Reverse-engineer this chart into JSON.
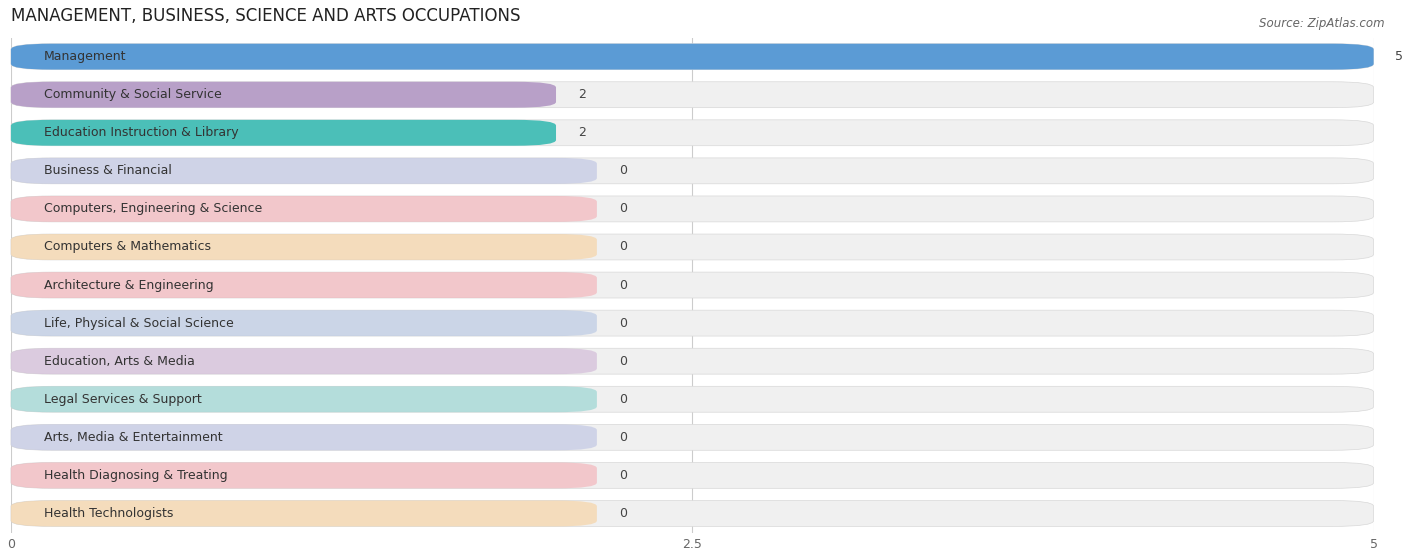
{
  "title": "MANAGEMENT, BUSINESS, SCIENCE AND ARTS OCCUPATIONS",
  "source": "Source: ZipAtlas.com",
  "categories": [
    "Management",
    "Community & Social Service",
    "Education Instruction & Library",
    "Business & Financial",
    "Computers, Engineering & Science",
    "Computers & Mathematics",
    "Architecture & Engineering",
    "Life, Physical & Social Science",
    "Education, Arts & Media",
    "Legal Services & Support",
    "Arts, Media & Entertainment",
    "Health Diagnosing & Treating",
    "Health Technologists"
  ],
  "values": [
    5,
    2,
    2,
    0,
    0,
    0,
    0,
    0,
    0,
    0,
    0,
    0,
    0
  ],
  "bar_colors": [
    "#5b9bd5",
    "#b8a0c8",
    "#4bbfb8",
    "#b0b8e0",
    "#f4a0a8",
    "#f8c98a",
    "#f4a0a8",
    "#a8bce0",
    "#c8a8d0",
    "#7accc8",
    "#b0b8e0",
    "#f4a0a8",
    "#f8c98a"
  ],
  "xlim": [
    0,
    5
  ],
  "xticks": [
    0,
    2.5,
    5
  ],
  "bg_bar_color": "#ebebeb",
  "row_bg_color": "#f7f7f7",
  "title_fontsize": 12,
  "label_fontsize": 9,
  "source_fontsize": 8.5
}
